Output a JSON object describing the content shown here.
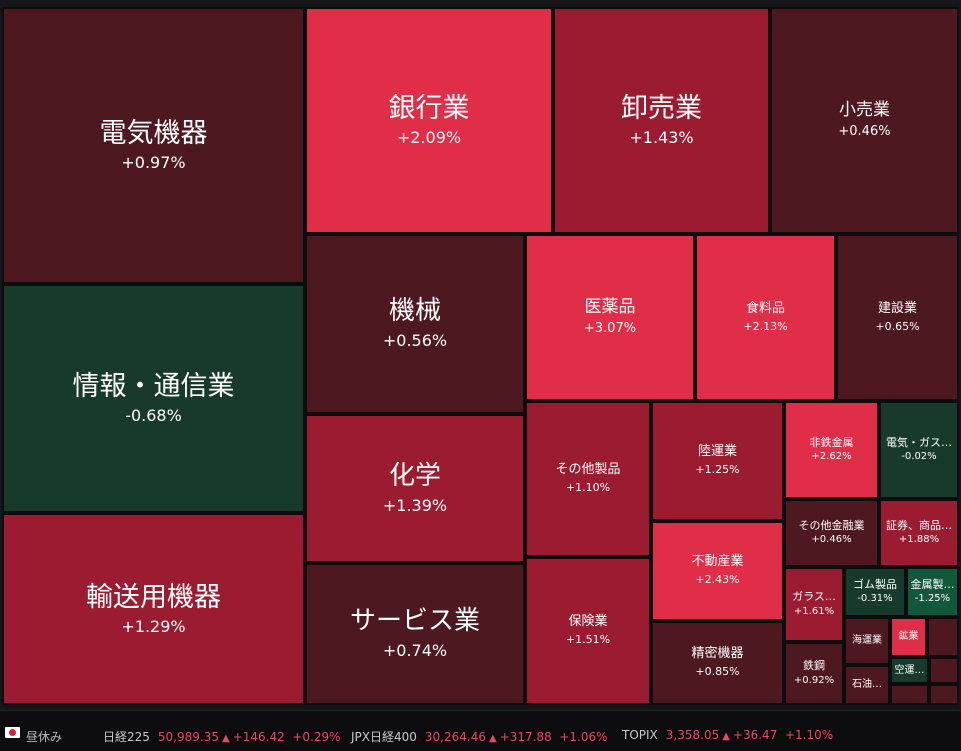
{
  "colors": {
    "up_strong": "#e02e48",
    "up_mid": "#9b1c31",
    "up_weak": "#4f1a22",
    "down_weak": "#183a2d",
    "down_mid": "#12583a",
    "neutral": "#3a1d23"
  },
  "sectors": [
    {
      "id": "denki",
      "name": "電気機器",
      "pct": "+0.97%"
    },
    {
      "id": "jouhou",
      "name": "情報・通信業",
      "pct": "-0.68%"
    },
    {
      "id": "yusou",
      "name": "輸送用機器",
      "pct": "+1.29%"
    },
    {
      "id": "ginkou",
      "name": "銀行業",
      "pct": "+2.09%"
    },
    {
      "id": "oroshi",
      "name": "卸売業",
      "pct": "+1.43%"
    },
    {
      "id": "kouri",
      "name": "小売業",
      "pct": "+0.46%"
    },
    {
      "id": "kikai",
      "name": "機械",
      "pct": "+0.56%"
    },
    {
      "id": "kagaku",
      "name": "化学",
      "pct": "+1.39%"
    },
    {
      "id": "service",
      "name": "サービス業",
      "pct": "+0.74%"
    },
    {
      "id": "iyaku",
      "name": "医薬品",
      "pct": "+3.07%"
    },
    {
      "id": "shokuryo",
      "name": "食料品",
      "pct": "+2.13%"
    },
    {
      "id": "kensetsu",
      "name": "建設業",
      "pct": "+0.65%"
    },
    {
      "id": "sonota",
      "name": "その他製品",
      "pct": "+1.10%"
    },
    {
      "id": "rikuun",
      "name": "陸運業",
      "pct": "+1.25%"
    },
    {
      "id": "hitetsu",
      "name": "非鉄金属",
      "pct": "+2.62%"
    },
    {
      "id": "denkigas",
      "name": "電気・ガス…",
      "pct": "-0.02%"
    },
    {
      "id": "hoken",
      "name": "保険業",
      "pct": "+1.51%"
    },
    {
      "id": "fudousan",
      "name": "不動産業",
      "pct": "+2.43%"
    },
    {
      "id": "sonotakinyu",
      "name": "その他金融業",
      "pct": "+0.46%"
    },
    {
      "id": "shouken",
      "name": "証券、商品…",
      "pct": "+1.88%"
    },
    {
      "id": "seimitsu",
      "name": "精密機器",
      "pct": "+0.85%"
    },
    {
      "id": "garasu",
      "name": "ガラス…",
      "pct": "+1.61%"
    },
    {
      "id": "gomu",
      "name": "ゴム製品",
      "pct": "-0.31%"
    },
    {
      "id": "kinzoku",
      "name": "金属製…",
      "pct": "-1.25%"
    },
    {
      "id": "tekkou",
      "name": "鉄鋼",
      "pct": "+0.92%"
    },
    {
      "id": "kaiun",
      "name": "海運業",
      "pct": ""
    },
    {
      "id": "kougyou",
      "name": "鉱業",
      "pct": ""
    },
    {
      "id": "sekiyu",
      "name": "石油…",
      "pct": ""
    },
    {
      "id": "kuuun",
      "name": "空運…",
      "pct": ""
    }
  ],
  "status": {
    "market_state": "昼休み",
    "indices": [
      {
        "label": "日経225",
        "value": "50,989.35",
        "change": "+146.42",
        "pct": "+0.29%"
      },
      {
        "label": "JPX日経400",
        "value": "30,264.46",
        "change": "+317.88",
        "pct": "+1.06%"
      },
      {
        "label": "TOPIX",
        "value": "3,358.05",
        "change": "+36.47",
        "pct": "+1.10%"
      }
    ]
  }
}
